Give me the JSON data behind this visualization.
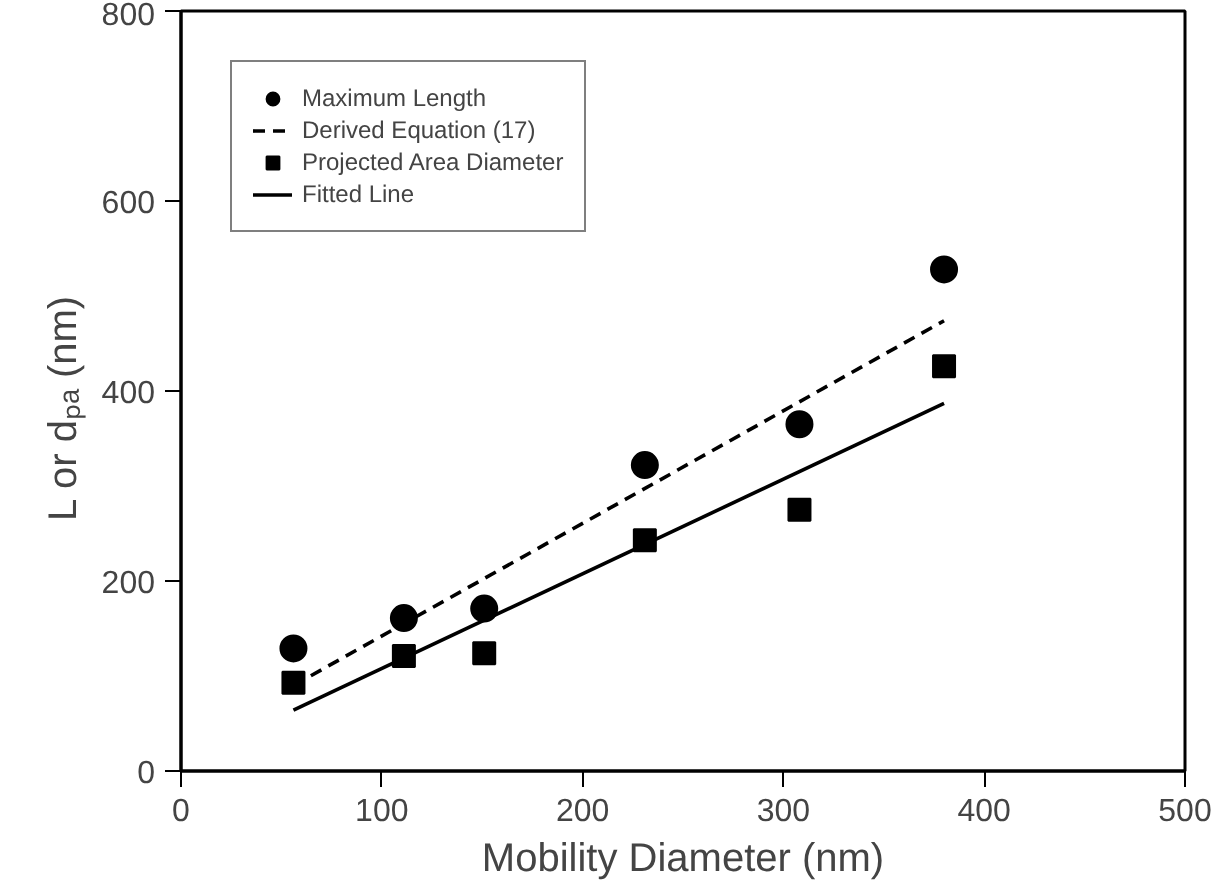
{
  "chart_data": {
    "type": "scatter",
    "xlabel": "Mobility Diameter (nm)",
    "ylabel": "L  or  dₚₐ  (nm)",
    "xlim": [
      0,
      500
    ],
    "xticks": [
      0,
      100,
      200,
      300,
      400,
      500
    ],
    "ylim": [
      0,
      800
    ],
    "yticks": [
      0,
      200,
      400,
      600,
      800
    ],
    "grid": false,
    "legend": "top left",
    "series": [
      {
        "name": "Maximum Length",
        "marker": "circle",
        "color": "#000000",
        "x": [
          56,
          111,
          151,
          231,
          308,
          380
        ],
        "values": [
          129,
          161,
          171,
          322,
          365,
          528
        ]
      },
      {
        "name": "Derived Equation (17)",
        "type": "line",
        "line_style": "dashed",
        "marker": "none",
        "color": "#000000",
        "x": [
          56,
          380
        ],
        "values": [
          90,
          474
        ]
      },
      {
        "name": "Projected Area Diameter",
        "marker": "square",
        "color": "#000000",
        "x": [
          56,
          111,
          151,
          231,
          308,
          380
        ],
        "values": [
          93,
          121,
          124,
          243,
          275,
          426
        ]
      },
      {
        "name": "Fitted Line",
        "type": "line",
        "line_style": "solid",
        "marker": "none",
        "color": "#000000",
        "x": [
          56,
          380
        ],
        "values": [
          64,
          387
        ]
      }
    ]
  }
}
